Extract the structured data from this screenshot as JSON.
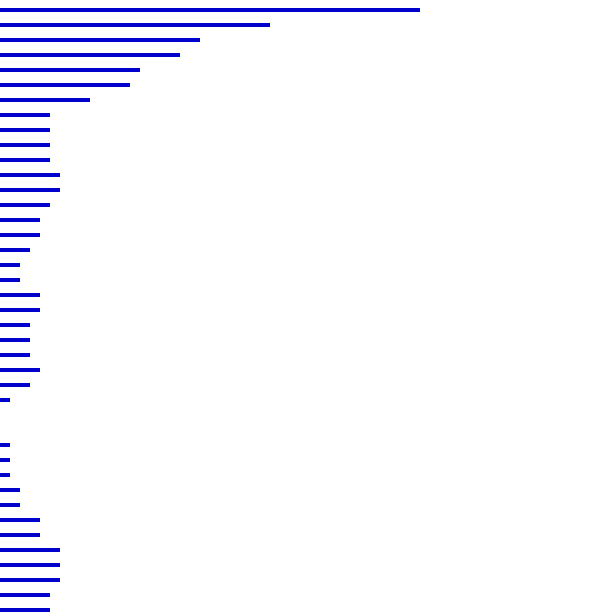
{
  "chart_data": {
    "type": "bar",
    "orientation": "horizontal",
    "bar_color": "#0000cc",
    "background": "#ffffff",
    "grid": false,
    "axes_visible": false,
    "values": [
      42,
      27,
      20,
      18,
      14,
      13,
      9,
      5,
      5,
      5,
      5,
      6,
      6,
      5,
      4,
      4,
      3,
      2,
      2,
      4,
      4,
      3,
      3,
      3,
      4,
      3,
      1,
      0,
      0,
      1,
      1,
      1,
      2,
      2,
      4,
      4,
      6,
      6,
      6,
      5,
      5
    ],
    "xlim": [
      0,
      61.5
    ]
  }
}
